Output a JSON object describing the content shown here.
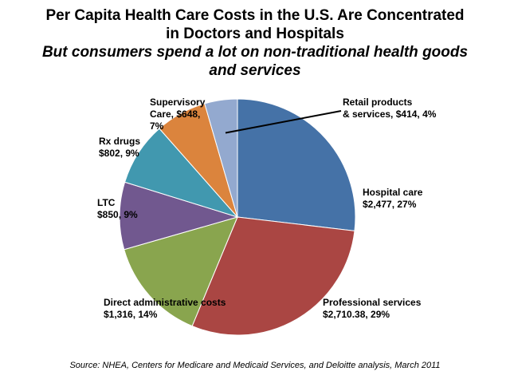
{
  "title": {
    "line1": "Per Capita Health Care Costs in the U.S. Are Concentrated",
    "line2": "in Doctors and Hospitals",
    "subtitle1": "But consumers spend a lot on non-traditional health goods",
    "subtitle2": "and services"
  },
  "source": "Source: NHEA, Centers for Medicare and Medicaid Services, and Deloitte analysis, March 2011",
  "chart_data": {
    "type": "pie",
    "title": "Per Capita Health Care Costs in the U.S. Are Concentrated in Doctors and Hospitals",
    "unit": "USD per capita",
    "slices": [
      {
        "name": "Hospital care",
        "value": 2477,
        "percent": 27,
        "color": "#4572A7",
        "label1": "Hospital care",
        "label2": "$2,477, 27%"
      },
      {
        "name": "Professional services",
        "value": 2710.38,
        "percent": 29,
        "color": "#AA4643",
        "label1": "Professional services",
        "label2": "$2,710.38, 29%"
      },
      {
        "name": "Direct administrative costs",
        "value": 1316,
        "percent": 14,
        "color": "#89A54E",
        "label1": "Direct administrative costs",
        "label2": "$1,316, 14%"
      },
      {
        "name": "LTC",
        "value": 850,
        "percent": 9,
        "color": "#71588F",
        "label1": "LTC",
        "label2": "$850, 9%"
      },
      {
        "name": "Rx drugs",
        "value": 802,
        "percent": 9,
        "color": "#4198AF",
        "label1": "Rx drugs",
        "label2": "$802, 9%"
      },
      {
        "name": "Supervisory Care",
        "value": 648,
        "percent": 7,
        "color": "#DB843D",
        "label1": "Supervisory",
        "label2": "Care, $648,",
        "label3": "7%"
      },
      {
        "name": "Retail products & services",
        "value": 414,
        "percent": 4,
        "color": "#93A9CF",
        "label1": "Retail products",
        "label2": "& services, $414, 4%"
      }
    ]
  }
}
